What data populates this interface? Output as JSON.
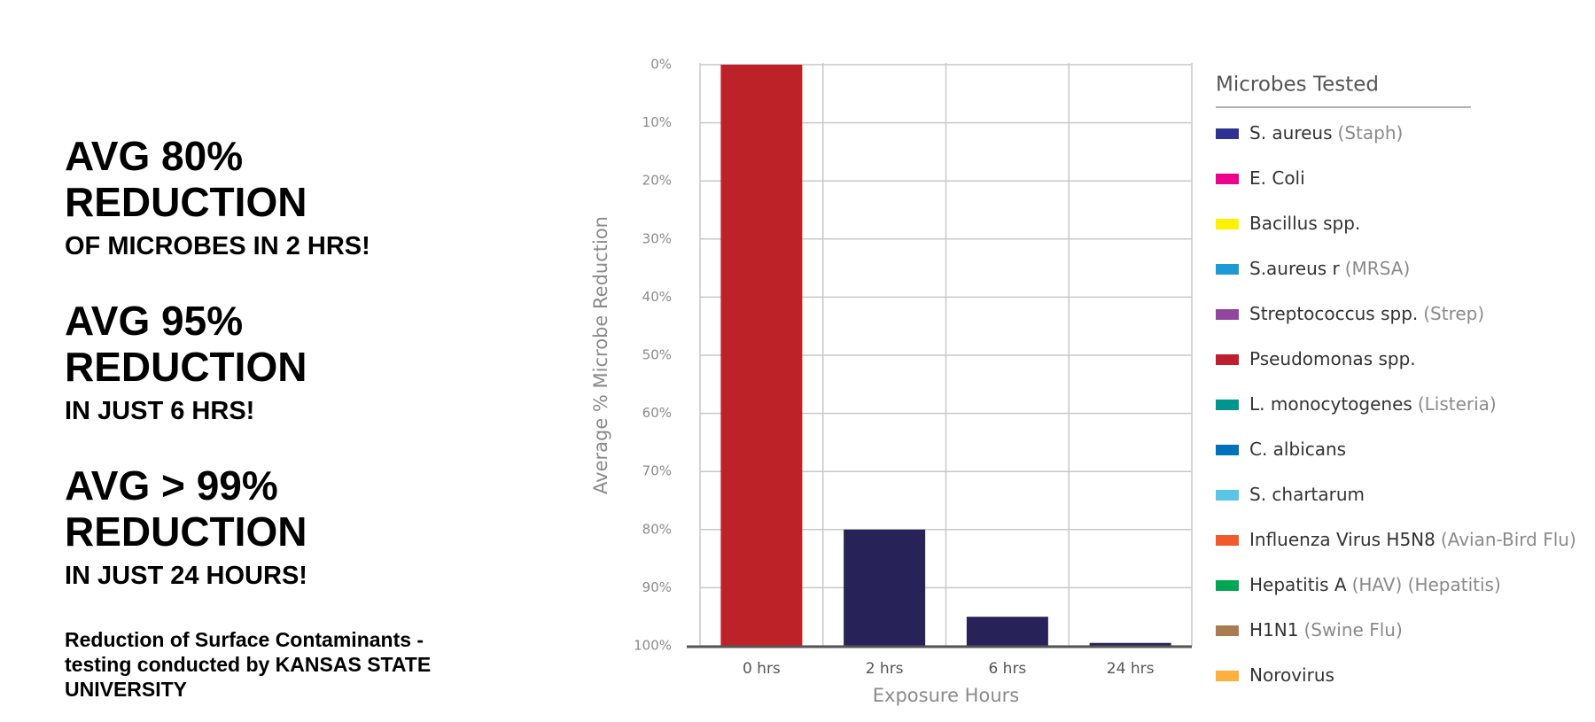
{
  "headlines": [
    {
      "main": [
        "AVG 80%",
        "REDUCTION"
      ],
      "sub": "OF MICROBES IN 2 HRS!"
    },
    {
      "main": [
        "AVG 95%",
        "REDUCTION"
      ],
      "sub": "IN JUST 6 HRS!"
    },
    {
      "main": [
        "AVG > 99%",
        "REDUCTION"
      ],
      "sub": "IN JUST 24 HOURS!"
    }
  ],
  "footnote": "Reduction of Surface Contaminants - testing conducted by KANSAS STATE UNIVERSITY",
  "chart_data": {
    "type": "bar",
    "y_label": "Average % Microbe Reduction",
    "x_label": "Exposure Hours",
    "categories": [
      "0 hrs",
      "2 hrs",
      "6 hrs",
      "24 hrs"
    ],
    "values": [
      0,
      80,
      95,
      99.5
    ],
    "colors": [
      "#be2229",
      "#272257",
      "#272257",
      "#272257"
    ],
    "ylim": [
      0,
      100
    ],
    "y_inverted": true,
    "yticks": [
      {
        "value": 0,
        "label": "0%"
      },
      {
        "value": 10,
        "label": "10%"
      },
      {
        "value": 20,
        "label": "20%"
      },
      {
        "value": 30,
        "label": "30%"
      },
      {
        "value": 40,
        "label": "40%"
      },
      {
        "value": 50,
        "label": "50%"
      },
      {
        "value": 60,
        "label": "60%"
      },
      {
        "value": 70,
        "label": "70%"
      },
      {
        "value": 80,
        "label": "80%"
      },
      {
        "value": 90,
        "label": "90%"
      },
      {
        "value": 100,
        "label": "100%"
      }
    ],
    "grid": true,
    "legend": {
      "title": "Microbes Tested",
      "items": [
        {
          "name": "S. aureus",
          "note": "(Staph)",
          "color": "#2e3192"
        },
        {
          "name": "E. Coli",
          "color": "#ec008c"
        },
        {
          "name": "Bacillus spp.",
          "color": "#fff200"
        },
        {
          "name": "S.aureus r",
          "note": "(MRSA)",
          "color": "#1c9ad6"
        },
        {
          "name": "Streptococcus spp.",
          "note": "(Strep)",
          "color": "#92469b"
        },
        {
          "name": "Pseudomonas spp.",
          "color": "#be1e2d"
        },
        {
          "name": "L. monocytogenes",
          "note": "(Listeria)",
          "color": "#00968f"
        },
        {
          "name": "C. albicans",
          "color": "#0072bc"
        },
        {
          "name": "S. chartarum",
          "color": "#5bc5e8"
        },
        {
          "name": "Influenza Virus H5N8",
          "note": "(Avian-Bird Flu)",
          "color": "#f15a29"
        },
        {
          "name": "Hepatitis A",
          "note": "(HAV) (Hepatitis)",
          "color": "#00a651"
        },
        {
          "name": "H1N1",
          "note": "(Swine Flu)",
          "color": "#a97c50"
        },
        {
          "name": "Norovirus",
          "color": "#fbb040"
        }
      ]
    }
  }
}
